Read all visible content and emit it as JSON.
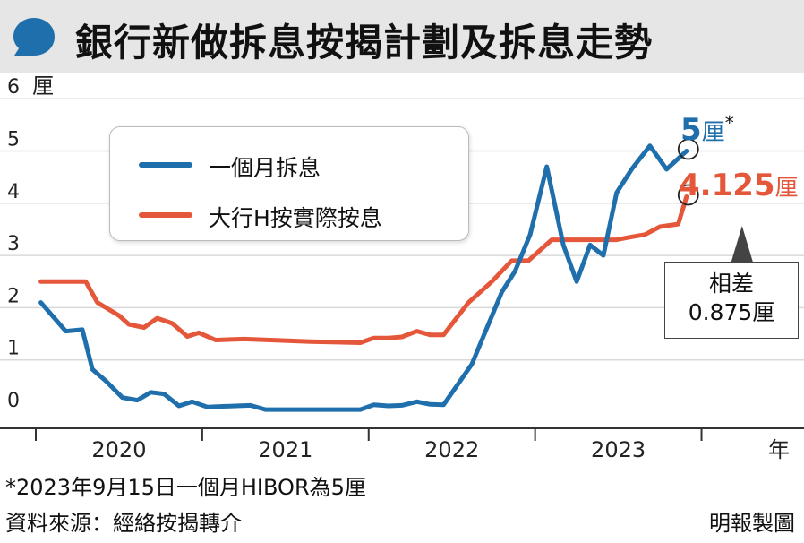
{
  "header": {
    "title": "銀行新做拆息按揭計劃及拆息走勢"
  },
  "chart_data": {
    "type": "line",
    "y_unit": "厘",
    "x_unit": "年",
    "ylim": [
      0,
      6
    ],
    "yticks": [
      "0",
      "1",
      "2",
      "3",
      "4",
      "5",
      "6"
    ],
    "xlim": [
      2019.5,
      2023.75
    ],
    "xtick_labels": [
      "2020",
      "2021",
      "2022",
      "2023"
    ],
    "xtick_positions": [
      2020,
      2021,
      2022,
      2023
    ],
    "x_dividers": [
      2019.5,
      2020.5,
      2021.5,
      2022.5,
      2023.5
    ],
    "grid": true,
    "legend_position": "top-left",
    "series": [
      {
        "name": "一個月拆息",
        "color": "#1f6fad",
        "points": [
          [
            2019.53,
            2.1
          ],
          [
            2019.68,
            1.55
          ],
          [
            2019.78,
            1.58
          ],
          [
            2019.84,
            0.82
          ],
          [
            2019.92,
            0.6
          ],
          [
            2020.02,
            0.28
          ],
          [
            2020.11,
            0.23
          ],
          [
            2020.19,
            0.38
          ],
          [
            2020.27,
            0.35
          ],
          [
            2020.36,
            0.12
          ],
          [
            2020.44,
            0.2
          ],
          [
            2020.53,
            0.1
          ],
          [
            2020.7,
            0.12
          ],
          [
            2020.79,
            0.13
          ],
          [
            2020.88,
            0.05
          ],
          [
            2021.0,
            0.05
          ],
          [
            2021.25,
            0.05
          ],
          [
            2021.45,
            0.05
          ],
          [
            2021.53,
            0.14
          ],
          [
            2021.62,
            0.12
          ],
          [
            2021.7,
            0.13
          ],
          [
            2021.79,
            0.2
          ],
          [
            2021.87,
            0.15
          ],
          [
            2021.95,
            0.14
          ],
          [
            2022.12,
            0.92
          ],
          [
            2022.3,
            2.3
          ],
          [
            2022.38,
            2.7
          ],
          [
            2022.47,
            3.4
          ],
          [
            2022.57,
            4.7
          ],
          [
            2022.67,
            3.2
          ],
          [
            2022.75,
            2.5
          ],
          [
            2022.83,
            3.2
          ],
          [
            2022.91,
            3.0
          ],
          [
            2022.99,
            4.2
          ],
          [
            2023.08,
            4.65
          ],
          [
            2023.19,
            5.1
          ],
          [
            2023.29,
            4.65
          ],
          [
            2023.41,
            5.0
          ]
        ]
      },
      {
        "name": "大行H按實際按息",
        "color": "#e5573a",
        "points": [
          [
            2019.53,
            2.5
          ],
          [
            2019.8,
            2.5
          ],
          [
            2019.87,
            2.1
          ],
          [
            2020.0,
            1.85
          ],
          [
            2020.06,
            1.68
          ],
          [
            2020.15,
            1.62
          ],
          [
            2020.23,
            1.8
          ],
          [
            2020.32,
            1.7
          ],
          [
            2020.41,
            1.45
          ],
          [
            2020.48,
            1.52
          ],
          [
            2020.58,
            1.38
          ],
          [
            2020.75,
            1.4
          ],
          [
            2020.91,
            1.38
          ],
          [
            2021.15,
            1.35
          ],
          [
            2021.45,
            1.33
          ],
          [
            2021.53,
            1.42
          ],
          [
            2021.62,
            1.42
          ],
          [
            2021.7,
            1.44
          ],
          [
            2021.79,
            1.55
          ],
          [
            2021.87,
            1.48
          ],
          [
            2021.95,
            1.48
          ],
          [
            2022.1,
            2.1
          ],
          [
            2022.24,
            2.5
          ],
          [
            2022.36,
            2.9
          ],
          [
            2022.46,
            2.9
          ],
          [
            2022.6,
            3.3
          ],
          [
            2022.7,
            3.3
          ],
          [
            2022.82,
            3.3
          ],
          [
            2022.99,
            3.3
          ],
          [
            2023.07,
            3.35
          ],
          [
            2023.16,
            3.4
          ],
          [
            2023.25,
            3.55
          ],
          [
            2023.36,
            3.6
          ],
          [
            2023.41,
            4.125
          ]
        ]
      }
    ],
    "annotations": {
      "blue_end_value": "5",
      "blue_end_unit": "厘",
      "blue_end_star": "*",
      "red_end_value": "4.125",
      "red_end_unit": "厘",
      "difference_label_1": "相差",
      "difference_label_2": "0.875厘"
    }
  },
  "footer": {
    "footnote": "*2023年9月15日一個月HIBOR為5厘",
    "source": "資料來源：經絡按揭轉介",
    "credit": "明報製圖"
  },
  "colors": {
    "blue": "#1f6fad",
    "red": "#e5573a",
    "title_bar": "#e6e6e6",
    "grid": "#d9d9d9"
  },
  "icons": {
    "title_icon": "speech-bubble-icon"
  }
}
